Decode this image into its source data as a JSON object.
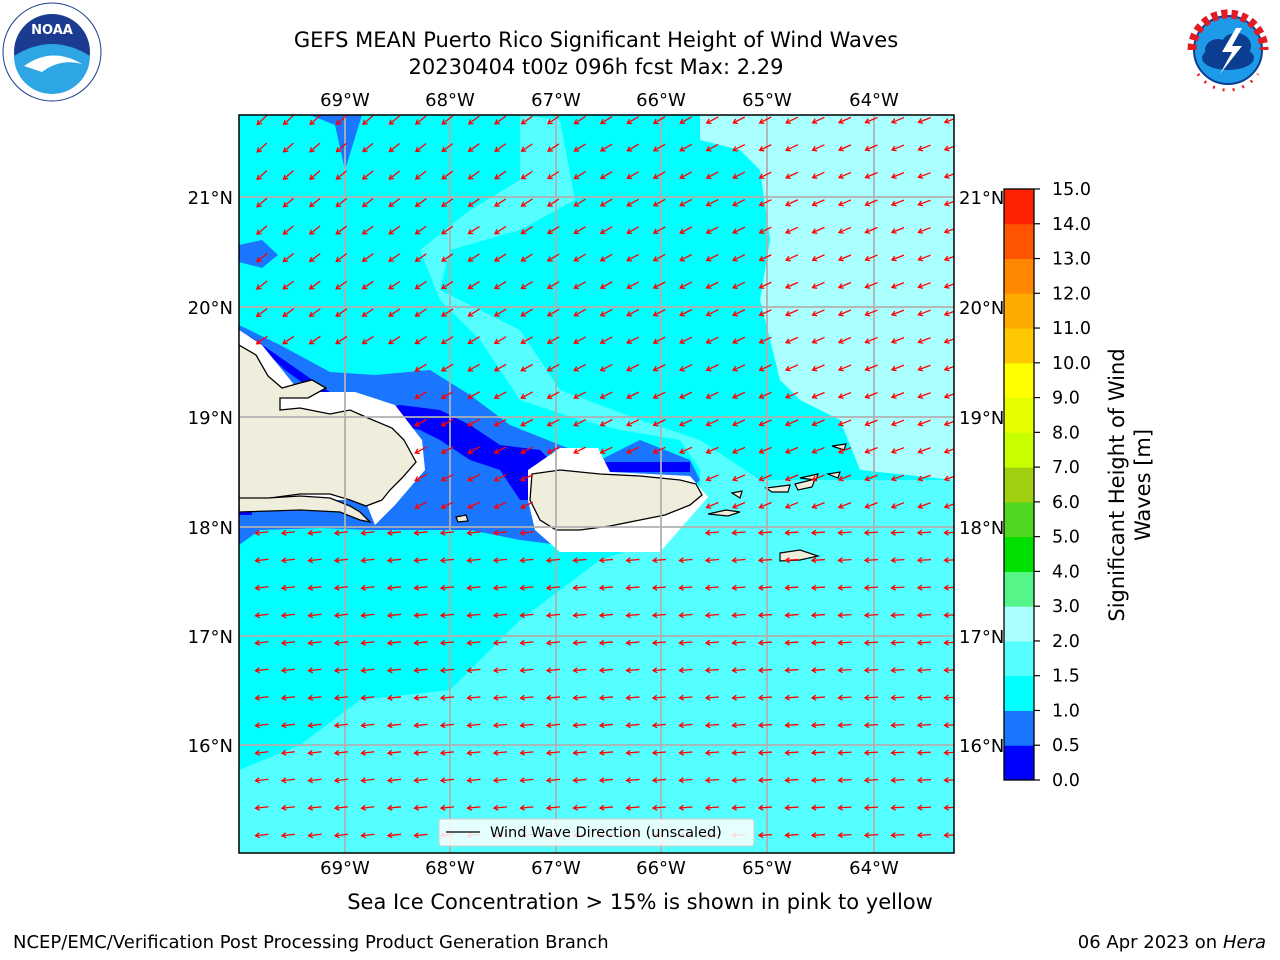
{
  "title": {
    "line1": "GEFS MEAN Puerto Rico Significant Height of Wind Waves",
    "line2": "20230404 t00z 096h fcst   Max: 2.29"
  },
  "map": {
    "lon_labels": [
      "69°W",
      "68°W",
      "67°W",
      "66°W",
      "65°W",
      "64°W"
    ],
    "lat_labels": [
      "21°N",
      "20°N",
      "19°N",
      "18°N",
      "17°N",
      "16°N"
    ],
    "legend_label": "Wind Wave Direction (unscaled)",
    "arrow_color": "#ff0000",
    "coast_color": "#000000",
    "land_color": "#efeedd"
  },
  "colorbar": {
    "label_line1": "Significant Height of Wind",
    "label_line2": "Waves [m]",
    "ticks": [
      "0.0",
      "0.5",
      "1.0",
      "1.5",
      "2.0",
      "3.0",
      "4.0",
      "5.0",
      "6.0",
      "7.0",
      "8.0",
      "9.0",
      "10.0",
      "11.0",
      "12.0",
      "13.0",
      "14.0",
      "15.0"
    ],
    "colors": [
      "#0000ff",
      "#1a75ff",
      "#00ffff",
      "#55ffff",
      "#aaffff",
      "#55f58a",
      "#00e000",
      "#50d820",
      "#a0d010",
      "#c8ff00",
      "#e6ff00",
      "#ffff00",
      "#ffc800",
      "#ffaa00",
      "#ff8800",
      "#ff5500",
      "#ff2200"
    ]
  },
  "bottom_note": "Sea Ice Concentration > 15% is shown in pink to yellow",
  "footer": {
    "left": "NCEP/EMC/Verification Post Processing Product Generation Branch",
    "right_prefix": "06 Apr 2023 on ",
    "right_host": "Hera"
  }
}
